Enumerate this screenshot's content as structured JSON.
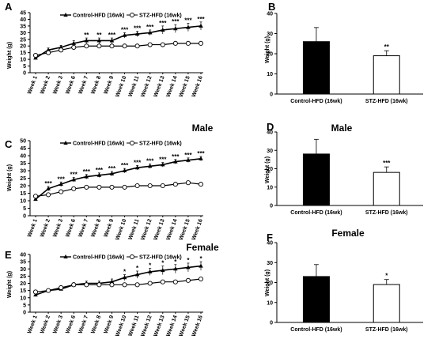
{
  "chart_data": [
    {
      "panel": "A",
      "type": "line",
      "ylabel": "Weight (g)",
      "ylim": [
        0,
        45
      ],
      "yticks": [
        0,
        5,
        10,
        15,
        20,
        25,
        30,
        35,
        40,
        45
      ],
      "categories": [
        "Week 1",
        "Week 2",
        "Week 3",
        "Week 6",
        "Week 7",
        "Week 8",
        "Week 9",
        "Week 10",
        "Week 11",
        "Week 12",
        "Week 13",
        "Week 14",
        "Week 15",
        "Week 16"
      ],
      "legend": "top",
      "series": [
        {
          "name": "Control-HFD (16wk)",
          "marker": "filled-triangle",
          "values": [
            11,
            17,
            19,
            22,
            24,
            24,
            24,
            28,
            29,
            30,
            32,
            33,
            34,
            35
          ],
          "errors": [
            1,
            1.5,
            1.5,
            2,
            2,
            2,
            2,
            2,
            2,
            2,
            3,
            3,
            3,
            3
          ]
        },
        {
          "name": "STZ-HFD (16wk)",
          "marker": "open-circle",
          "values": [
            13,
            15,
            17,
            19,
            20,
            20,
            20,
            20,
            20,
            21,
            21,
            22,
            22,
            22
          ],
          "errors": [
            0.8,
            0.8,
            1,
            1,
            1,
            1,
            1,
            1,
            1,
            1,
            1,
            1,
            1,
            1
          ]
        }
      ],
      "annotations": [
        "",
        "",
        "",
        "",
        "**",
        "**",
        "***",
        "***",
        "***",
        "***",
        "***",
        "***",
        "***",
        "***"
      ]
    },
    {
      "panel": "B",
      "type": "bar",
      "ylabel": "Weight (g)",
      "ylim": [
        0,
        40
      ],
      "yticks": [
        0,
        10,
        20,
        30,
        40
      ],
      "categories": [
        "Control-HFD (16wk)",
        "STZ-HFD (16wk)"
      ],
      "values": [
        26,
        19
      ],
      "errors": [
        7,
        2.5
      ],
      "fills": [
        "#000000",
        "#ffffff"
      ],
      "annotations": [
        "",
        "**"
      ]
    },
    {
      "panel": "C",
      "type": "line",
      "title": "Male",
      "ylabel": "Weight (g)",
      "ylim": [
        0,
        50
      ],
      "yticks": [
        0,
        5,
        10,
        15,
        20,
        25,
        30,
        35,
        40,
        45,
        50
      ],
      "categories": [
        "Week 1",
        "Week 2",
        "Week 3",
        "Week 6",
        "Week 7",
        "Week 8",
        "Week 9",
        "Week 10",
        "Week 11",
        "Week 12",
        "Week 13",
        "Week 14",
        "Week 15",
        "Week 16"
      ],
      "legend": "top",
      "series": [
        {
          "name": "Control-HFD (16wk)",
          "marker": "filled-triangle",
          "values": [
            11,
            18,
            21,
            24,
            26,
            27,
            28,
            30,
            32,
            33,
            34,
            36,
            37,
            38
          ],
          "errors": [
            1,
            1.5,
            1.5,
            1.5,
            1.5,
            1.5,
            1.5,
            1.5,
            1.5,
            1.5,
            1.5,
            1.5,
            1.5,
            1.5
          ]
        },
        {
          "name": "STZ-HFD (16wk)",
          "marker": "open-circle",
          "values": [
            13,
            14,
            16,
            18,
            19,
            19,
            19,
            19,
            20,
            20,
            20,
            21,
            22,
            21
          ],
          "errors": [
            0.8,
            0.8,
            0.8,
            1,
            1,
            1,
            1,
            1,
            1,
            1,
            1,
            1,
            1,
            1
          ]
        }
      ],
      "annotations": [
        "",
        "***",
        "***",
        "***",
        "***",
        "***",
        "***",
        "***",
        "***",
        "***",
        "***",
        "***",
        "***",
        "***"
      ]
    },
    {
      "panel": "D",
      "type": "bar",
      "title": "Male",
      "ylabel": "Weight (g)",
      "ylim": [
        0,
        40
      ],
      "yticks": [
        0,
        10,
        20,
        30,
        40
      ],
      "categories": [
        "Control-HFD (16wk)",
        "STZ-HFD (16wk)"
      ],
      "values": [
        28,
        18
      ],
      "errors": [
        8,
        3
      ],
      "fills": [
        "#000000",
        "#ffffff"
      ],
      "annotations": [
        "",
        "***"
      ]
    },
    {
      "panel": "E",
      "type": "line",
      "title": "Female",
      "ylabel": "Weight (g)",
      "ylim": [
        0,
        40
      ],
      "yticks": [
        0,
        5,
        10,
        15,
        20,
        25,
        30,
        35,
        40
      ],
      "categories": [
        "Week 1",
        "Week 2",
        "Week 3",
        "Week 6",
        "Week 7",
        "Week 8",
        "Week 9",
        "Week 10",
        "Week 11",
        "Week 12",
        "Week 13",
        "Week 14",
        "Week 15",
        "Week 16"
      ],
      "legend": "top",
      "series": [
        {
          "name": "Control-HFD (16wk)",
          "marker": "filled-triangle",
          "values": [
            12,
            15,
            16,
            19,
            20,
            20,
            21,
            24,
            26,
            28,
            29,
            30,
            31,
            32
          ],
          "errors": [
            1,
            1,
            1,
            1.5,
            1.5,
            1.5,
            2,
            2,
            2.5,
            2.5,
            3,
            3,
            3,
            3
          ]
        },
        {
          "name": "STZ-HFD (16wk)",
          "marker": "open-circle",
          "values": [
            14,
            15,
            17,
            19,
            19,
            19,
            19,
            19,
            19,
            20,
            21,
            21,
            22,
            23
          ],
          "errors": [
            0.8,
            0.8,
            0.8,
            1,
            1,
            1,
            1,
            1,
            1,
            1,
            1,
            1,
            1,
            1
          ]
        }
      ],
      "annotations": [
        "",
        "",
        "",
        "",
        "",
        "",
        "",
        "*",
        "*",
        "*",
        "*",
        "*",
        "*",
        "*"
      ]
    },
    {
      "panel": "F",
      "type": "bar",
      "title": "Female",
      "ylabel": "Weight (g)",
      "ylim": [
        0,
        40
      ],
      "yticks": [
        0,
        10,
        20,
        30,
        40
      ],
      "categories": [
        "Control-HFD (16wk)",
        "STZ-HFD (16wk)"
      ],
      "values": [
        23,
        19
      ],
      "errors": [
        6,
        2.5
      ],
      "fills": [
        "#000000",
        "#ffffff"
      ],
      "annotations": [
        "",
        "*"
      ]
    }
  ]
}
